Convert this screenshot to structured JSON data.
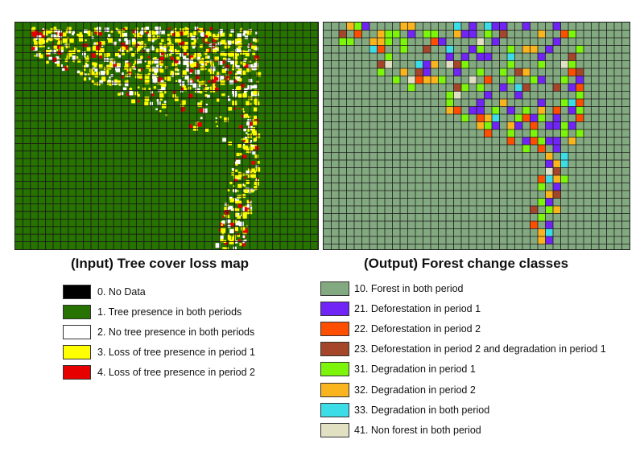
{
  "input_map": {
    "title": "(Input) Tree cover loss map",
    "colors": {
      "no_data": "#000000",
      "tree": "#267300",
      "no_tree": "#ffffff",
      "loss_p1": "#ffff00",
      "loss_p2": "#e60000",
      "grid": "#1a1a1a"
    },
    "legend": [
      {
        "code": "0",
        "label": "0. No Data",
        "color": "#000000"
      },
      {
        "code": "1",
        "label": "1. Tree presence in both periods",
        "color": "#267300"
      },
      {
        "code": "2",
        "label": "2. No tree presence in both periods",
        "color": "#ffffff"
      },
      {
        "code": "3",
        "label": "3. Loss of tree presence in period 1",
        "color": "#ffff00"
      },
      {
        "code": "4",
        "label": "4. Loss of tree presence in period 2",
        "color": "#e60000"
      }
    ]
  },
  "output_map": {
    "title": "(Output) Forest change classes",
    "colors": {
      "base": "#83a981",
      "grid": "#1a1a1a"
    },
    "legend": [
      {
        "code": "10",
        "label": "10. Forest in both period",
        "color": "#83a981"
      },
      {
        "code": "21",
        "label": "21. Deforestation in period 1",
        "color": "#7024f5"
      },
      {
        "code": "22",
        "label": "22. Deforestation in period 2",
        "color": "#ff4e00"
      },
      {
        "code": "23",
        "label": "23. Deforestation in period 2 and degradation in period 1",
        "color": "#a5462a"
      },
      {
        "code": "31",
        "label": "31. Degradation in period 1",
        "color": "#7cf50b"
      },
      {
        "code": "32",
        "label": "32. Degradation in period 2",
        "color": "#fab41e"
      },
      {
        "code": "33",
        "label": "33. Degradation in both period",
        "color": "#3ddde8"
      },
      {
        "code": "41",
        "label": "41. Non forest in both period",
        "color": "#e1e0c3"
      }
    ]
  }
}
